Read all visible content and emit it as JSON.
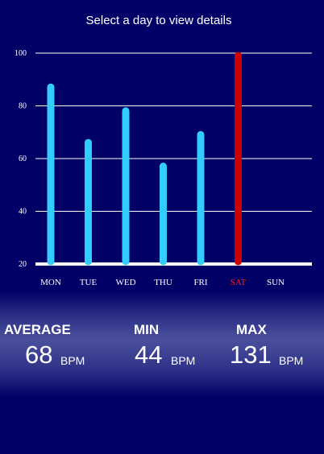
{
  "header": {
    "title": "Select a day to view details"
  },
  "colors": {
    "background": "#000066",
    "bar_default": "#33ccff",
    "bar_selected": "#cc0000",
    "grid": "#ffffff",
    "label_default": "#ffffff",
    "label_selected": "#ff1a1a"
  },
  "chart_data": {
    "type": "bar",
    "categories": [
      "MON",
      "TUE",
      "WED",
      "THU",
      "FRI",
      "SAT",
      "SUN"
    ],
    "values": [
      88,
      67,
      79,
      58,
      70,
      100,
      null
    ],
    "selected": "SAT",
    "yticks": [
      20,
      40,
      60,
      80,
      100
    ],
    "ylim": [
      20,
      100
    ],
    "grid": true
  },
  "stats": {
    "average": {
      "label": "AVERAGE",
      "value": "68",
      "unit": "BPM"
    },
    "min": {
      "label": "MIN",
      "value": "44",
      "unit": "BPM"
    },
    "max": {
      "label": "MAX",
      "value": "131",
      "unit": "BPM"
    }
  }
}
